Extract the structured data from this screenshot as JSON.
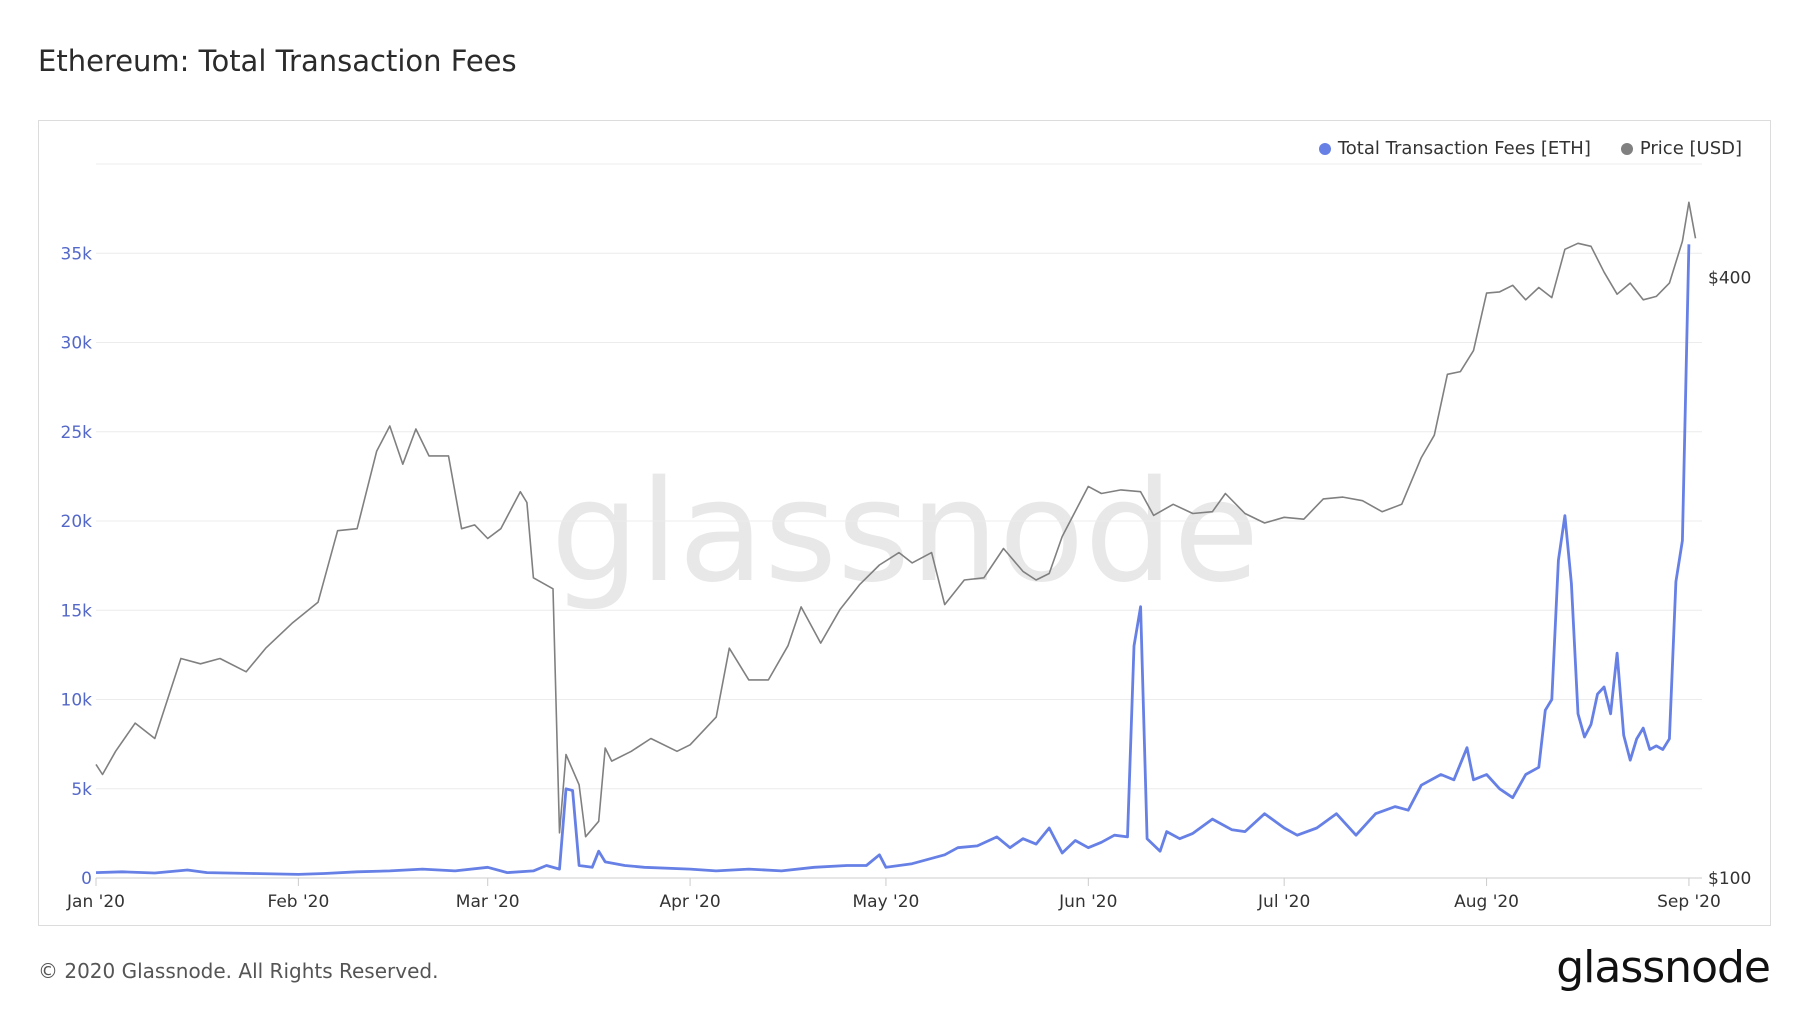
{
  "title": "Ethereum: Total Transaction Fees",
  "legend": [
    {
      "label": "Total Transaction Fees [ETH]",
      "color": "#6680e6"
    },
    {
      "label": "Price [USD]",
      "color": "#808080"
    }
  ],
  "footer": "© 2020 Glassnode. All Rights Reserved.",
  "watermark": "glassnode",
  "logo": "glassnode",
  "chart_data": {
    "type": "line",
    "xlabel": "",
    "ylabel": "",
    "x_ticks": [
      "Jan '20",
      "Feb '20",
      "Mar '20",
      "Apr '20",
      "May '20",
      "Jun '20",
      "Jul '20",
      "Aug '20",
      "Sep '20"
    ],
    "x_range": [
      "2020-01-01",
      "2020-09-03"
    ],
    "y_left_ticks": [
      "0",
      "5k",
      "10k",
      "15k",
      "20k",
      "25k",
      "30k",
      "35k"
    ],
    "y_left_range": [
      0,
      40000
    ],
    "y_right_ticks": [
      "$100",
      "$400"
    ],
    "y_right_scale": "log",
    "y_right_range": [
      100,
      520
    ],
    "grid": true,
    "legend_position": "top-right",
    "series": [
      {
        "name": "Total Transaction Fees [ETH]",
        "color": "#6680e6",
        "axis": "left",
        "points": [
          [
            "2020-01-01",
            300
          ],
          [
            "2020-01-05",
            350
          ],
          [
            "2020-01-10",
            280
          ],
          [
            "2020-01-15",
            450
          ],
          [
            "2020-01-18",
            300
          ],
          [
            "2020-01-25",
            250
          ],
          [
            "2020-02-01",
            200
          ],
          [
            "2020-02-05",
            250
          ],
          [
            "2020-02-10",
            350
          ],
          [
            "2020-02-15",
            400
          ],
          [
            "2020-02-20",
            500
          ],
          [
            "2020-02-25",
            400
          ],
          [
            "2020-03-01",
            600
          ],
          [
            "2020-03-04",
            300
          ],
          [
            "2020-03-08",
            400
          ],
          [
            "2020-03-10",
            700
          ],
          [
            "2020-03-12",
            500
          ],
          [
            "2020-03-13",
            5000
          ],
          [
            "2020-03-14",
            4900
          ],
          [
            "2020-03-15",
            700
          ],
          [
            "2020-03-17",
            600
          ],
          [
            "2020-03-18",
            1500
          ],
          [
            "2020-03-19",
            900
          ],
          [
            "2020-03-22",
            700
          ],
          [
            "2020-03-25",
            600
          ],
          [
            "2020-04-01",
            500
          ],
          [
            "2020-04-05",
            400
          ],
          [
            "2020-04-10",
            500
          ],
          [
            "2020-04-15",
            400
          ],
          [
            "2020-04-20",
            600
          ],
          [
            "2020-04-25",
            700
          ],
          [
            "2020-04-28",
            700
          ],
          [
            "2020-04-30",
            1300
          ],
          [
            "2020-05-01",
            600
          ],
          [
            "2020-05-05",
            800
          ],
          [
            "2020-05-10",
            1300
          ],
          [
            "2020-05-12",
            1700
          ],
          [
            "2020-05-15",
            1800
          ],
          [
            "2020-05-18",
            2300
          ],
          [
            "2020-05-20",
            1700
          ],
          [
            "2020-05-22",
            2200
          ],
          [
            "2020-05-24",
            1900
          ],
          [
            "2020-05-26",
            2800
          ],
          [
            "2020-05-28",
            1400
          ],
          [
            "2020-05-30",
            2100
          ],
          [
            "2020-06-01",
            1700
          ],
          [
            "2020-06-03",
            2000
          ],
          [
            "2020-06-05",
            2400
          ],
          [
            "2020-06-07",
            2300
          ],
          [
            "2020-06-08",
            13000
          ],
          [
            "2020-06-09",
            15200
          ],
          [
            "2020-06-10",
            2200
          ],
          [
            "2020-06-12",
            1500
          ],
          [
            "2020-06-13",
            2600
          ],
          [
            "2020-06-15",
            2200
          ],
          [
            "2020-06-17",
            2500
          ],
          [
            "2020-06-20",
            3300
          ],
          [
            "2020-06-23",
            2700
          ],
          [
            "2020-06-25",
            2600
          ],
          [
            "2020-06-28",
            3600
          ],
          [
            "2020-07-01",
            2800
          ],
          [
            "2020-07-03",
            2400
          ],
          [
            "2020-07-06",
            2800
          ],
          [
            "2020-07-09",
            3600
          ],
          [
            "2020-07-12",
            2400
          ],
          [
            "2020-07-15",
            3600
          ],
          [
            "2020-07-18",
            4000
          ],
          [
            "2020-07-20",
            3800
          ],
          [
            "2020-07-22",
            5200
          ],
          [
            "2020-07-25",
            5800
          ],
          [
            "2020-07-27",
            5500
          ],
          [
            "2020-07-29",
            7300
          ],
          [
            "2020-07-30",
            5500
          ],
          [
            "2020-08-01",
            5800
          ],
          [
            "2020-08-03",
            5000
          ],
          [
            "2020-08-05",
            4500
          ],
          [
            "2020-08-07",
            5800
          ],
          [
            "2020-08-09",
            6200
          ],
          [
            "2020-08-10",
            9400
          ],
          [
            "2020-08-11",
            10000
          ],
          [
            "2020-08-12",
            17800
          ],
          [
            "2020-08-13",
            20300
          ],
          [
            "2020-08-14",
            16500
          ],
          [
            "2020-08-15",
            9200
          ],
          [
            "2020-08-16",
            7900
          ],
          [
            "2020-08-17",
            8600
          ],
          [
            "2020-08-18",
            10300
          ],
          [
            "2020-08-19",
            10700
          ],
          [
            "2020-08-20",
            9200
          ],
          [
            "2020-08-21",
            12600
          ],
          [
            "2020-08-22",
            8000
          ],
          [
            "2020-08-23",
            6600
          ],
          [
            "2020-08-24",
            7800
          ],
          [
            "2020-08-25",
            8400
          ],
          [
            "2020-08-26",
            7200
          ],
          [
            "2020-08-27",
            7400
          ],
          [
            "2020-08-28",
            7200
          ],
          [
            "2020-08-29",
            7800
          ],
          [
            "2020-08-30",
            16600
          ],
          [
            "2020-08-31",
            18900
          ],
          [
            "2020-09-01",
            35500
          ]
        ]
      },
      {
        "name": "Price [USD]",
        "color": "#808080",
        "axis": "right",
        "points": [
          [
            "2020-01-01",
            130
          ],
          [
            "2020-01-02",
            127
          ],
          [
            "2020-01-04",
            134
          ],
          [
            "2020-01-07",
            143
          ],
          [
            "2020-01-10",
            138
          ],
          [
            "2020-01-14",
            166
          ],
          [
            "2020-01-17",
            164
          ],
          [
            "2020-01-20",
            166
          ],
          [
            "2020-01-24",
            161
          ],
          [
            "2020-01-27",
            170
          ],
          [
            "2020-01-31",
            180
          ],
          [
            "2020-02-04",
            189
          ],
          [
            "2020-02-07",
            223
          ],
          [
            "2020-02-10",
            224
          ],
          [
            "2020-02-13",
            268
          ],
          [
            "2020-02-15",
            284
          ],
          [
            "2020-02-17",
            260
          ],
          [
            "2020-02-19",
            282
          ],
          [
            "2020-02-21",
            265
          ],
          [
            "2020-02-24",
            265
          ],
          [
            "2020-02-26",
            224
          ],
          [
            "2020-02-28",
            226
          ],
          [
            "2020-03-01",
            219
          ],
          [
            "2020-03-03",
            224
          ],
          [
            "2020-03-06",
            244
          ],
          [
            "2020-03-07",
            238
          ],
          [
            "2020-03-08",
            200
          ],
          [
            "2020-03-11",
            195
          ],
          [
            "2020-03-12",
            111
          ],
          [
            "2020-03-13",
            133
          ],
          [
            "2020-03-15",
            124
          ],
          [
            "2020-03-16",
            110
          ],
          [
            "2020-03-18",
            114
          ],
          [
            "2020-03-19",
            135
          ],
          [
            "2020-03-20",
            131
          ],
          [
            "2020-03-23",
            134
          ],
          [
            "2020-03-26",
            138
          ],
          [
            "2020-03-30",
            134
          ],
          [
            "2020-04-01",
            136
          ],
          [
            "2020-04-05",
            145
          ],
          [
            "2020-04-07",
            170
          ],
          [
            "2020-04-10",
            158
          ],
          [
            "2020-04-13",
            158
          ],
          [
            "2020-04-16",
            171
          ],
          [
            "2020-04-18",
            187
          ],
          [
            "2020-04-21",
            172
          ],
          [
            "2020-04-24",
            186
          ],
          [
            "2020-04-27",
            197
          ],
          [
            "2020-04-30",
            206
          ],
          [
            "2020-05-03",
            212
          ],
          [
            "2020-05-05",
            207
          ],
          [
            "2020-05-08",
            212
          ],
          [
            "2020-05-10",
            188
          ],
          [
            "2020-05-13",
            199
          ],
          [
            "2020-05-16",
            200
          ],
          [
            "2020-05-19",
            214
          ],
          [
            "2020-05-22",
            203
          ],
          [
            "2020-05-24",
            199
          ],
          [
            "2020-05-26",
            202
          ],
          [
            "2020-05-28",
            220
          ],
          [
            "2020-06-01",
            247
          ],
          [
            "2020-06-03",
            243
          ],
          [
            "2020-06-06",
            245
          ],
          [
            "2020-06-09",
            244
          ],
          [
            "2020-06-11",
            231
          ],
          [
            "2020-06-14",
            237
          ],
          [
            "2020-06-17",
            232
          ],
          [
            "2020-06-20",
            233
          ],
          [
            "2020-06-22",
            243
          ],
          [
            "2020-06-25",
            232
          ],
          [
            "2020-06-28",
            227
          ],
          [
            "2020-07-01",
            230
          ],
          [
            "2020-07-04",
            229
          ],
          [
            "2020-07-07",
            240
          ],
          [
            "2020-07-10",
            241
          ],
          [
            "2020-07-13",
            239
          ],
          [
            "2020-07-16",
            233
          ],
          [
            "2020-07-19",
            237
          ],
          [
            "2020-07-22",
            264
          ],
          [
            "2020-07-24",
            278
          ],
          [
            "2020-07-26",
            320
          ],
          [
            "2020-07-28",
            322
          ],
          [
            "2020-07-30",
            338
          ],
          [
            "2020-08-01",
            386
          ],
          [
            "2020-08-03",
            387
          ],
          [
            "2020-08-05",
            393
          ],
          [
            "2020-08-07",
            380
          ],
          [
            "2020-08-09",
            391
          ],
          [
            "2020-08-11",
            382
          ],
          [
            "2020-08-13",
            427
          ],
          [
            "2020-08-15",
            433
          ],
          [
            "2020-08-17",
            430
          ],
          [
            "2020-08-19",
            405
          ],
          [
            "2020-08-21",
            385
          ],
          [
            "2020-08-23",
            395
          ],
          [
            "2020-08-25",
            380
          ],
          [
            "2020-08-27",
            383
          ],
          [
            "2020-08-29",
            395
          ],
          [
            "2020-08-31",
            435
          ],
          [
            "2020-09-01",
            476
          ],
          [
            "2020-09-02",
            438
          ]
        ]
      }
    ]
  }
}
